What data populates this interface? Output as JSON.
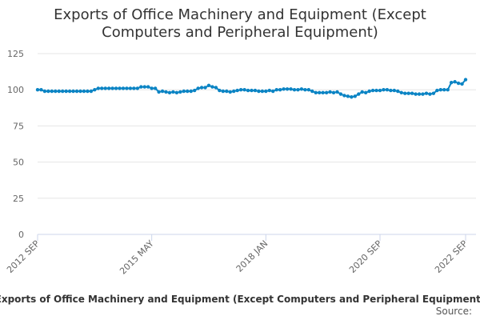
{
  "chart_data": {
    "type": "line",
    "title": "Exports of Office Machinery and Equipment (Except Computers and Peripheral Equipment)",
    "footer": "Exports of Office Machinery and Equipment (Except Computers and Peripheral Equipment)",
    "source": "Source:",
    "color": "#0b84c4",
    "grid": true,
    "ylim": [
      0,
      125
    ],
    "yticks": [
      0,
      25,
      50,
      75,
      100,
      125
    ],
    "categories": [
      "2012 SEP",
      null,
      null,
      null,
      null,
      null,
      null,
      null,
      null,
      null,
      null,
      null,
      null,
      null,
      null,
      null,
      null,
      null,
      null,
      null,
      null,
      null,
      null,
      null,
      null,
      null,
      null,
      null,
      null,
      null,
      null,
      null,
      "2015 MAY",
      null,
      null,
      null,
      null,
      null,
      null,
      null,
      null,
      null,
      null,
      null,
      null,
      null,
      null,
      null,
      null,
      null,
      null,
      null,
      null,
      null,
      null,
      null,
      null,
      null,
      null,
      null,
      null,
      null,
      null,
      null,
      "2018 JAN",
      null,
      null,
      null,
      null,
      null,
      null,
      null,
      null,
      null,
      null,
      null,
      null,
      null,
      null,
      null,
      null,
      null,
      null,
      null,
      null,
      null,
      null,
      null,
      null,
      null,
      null,
      null,
      null,
      null,
      null,
      null,
      "2020 SEP",
      null,
      null,
      null,
      null,
      null,
      null,
      null,
      null,
      null,
      null,
      null,
      null,
      null,
      null,
      null,
      null,
      null,
      null,
      null,
      null,
      null,
      null,
      null,
      "2022 SEP"
    ],
    "values": [
      100,
      100,
      99,
      99,
      99,
      99,
      99,
      99,
      99,
      99,
      99,
      99,
      99,
      99,
      99,
      99,
      100,
      101,
      101,
      101,
      101,
      101,
      101,
      101,
      101,
      101,
      101,
      101,
      101,
      102,
      102,
      102,
      101,
      101,
      98.5,
      99,
      98.5,
      98,
      98.5,
      98,
      98.5,
      99,
      99,
      99,
      99.5,
      101,
      101.5,
      101.5,
      103,
      102,
      101.5,
      99.5,
      99,
      99,
      98.5,
      99,
      99.5,
      100,
      100,
      99.5,
      99.5,
      99.5,
      99,
      99,
      99,
      99.5,
      99,
      100,
      100,
      100.5,
      100.5,
      100.5,
      100,
      100,
      100.5,
      100,
      100,
      99,
      98,
      98,
      98,
      98,
      98.5,
      98,
      98.5,
      97,
      96,
      95.5,
      95,
      95.5,
      97,
      98.5,
      98,
      99,
      99.5,
      99.5,
      99.5,
      100,
      100,
      99.5,
      99.5,
      99,
      98,
      97.5,
      97.5,
      97.5,
      97,
      97,
      97,
      97.5,
      97,
      97.5,
      99.5,
      100,
      100,
      100,
      105,
      105.5,
      104.5,
      104,
      107
    ]
  }
}
